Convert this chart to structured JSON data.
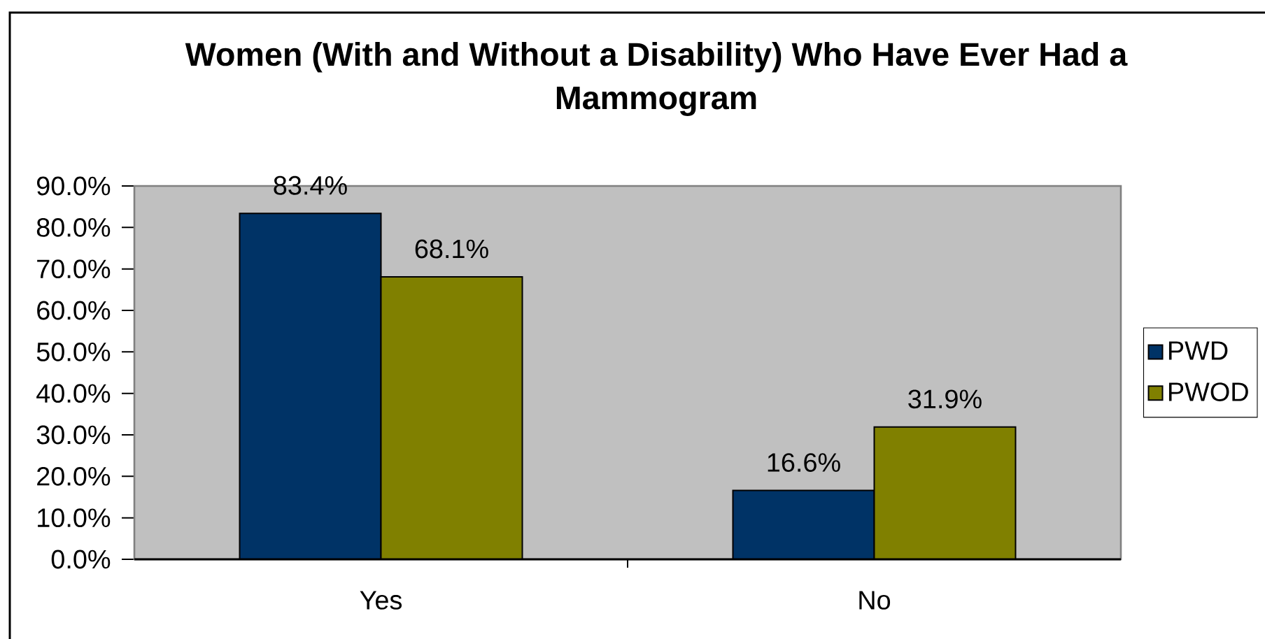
{
  "chart_data": {
    "type": "bar",
    "title": "Women (With and Without a Disability) Who Have Ever Had a Mammogram",
    "categories": [
      "Yes",
      "No"
    ],
    "series": [
      {
        "name": "PWD",
        "color": "#003366",
        "values": [
          83.4,
          16.6
        ],
        "value_labels": [
          "83.4%",
          "16.6%"
        ]
      },
      {
        "name": "PWOD",
        "color": "#808000",
        "values": [
          68.1,
          31.9
        ],
        "value_labels": [
          "68.1%",
          "31.9%"
        ]
      }
    ],
    "ylim": [
      0,
      90
    ],
    "yticks": [
      {
        "value": 0,
        "label": "0.0%"
      },
      {
        "value": 10,
        "label": "10.0%"
      },
      {
        "value": 20,
        "label": "20.0%"
      },
      {
        "value": 30,
        "label": "30.0%"
      },
      {
        "value": 40,
        "label": "40.0%"
      },
      {
        "value": 50,
        "label": "50.0%"
      },
      {
        "value": 60,
        "label": "60.0%"
      },
      {
        "value": 70,
        "label": "70.0%"
      },
      {
        "value": 80,
        "label": "80.0%"
      },
      {
        "value": 90,
        "label": "90.0%"
      }
    ],
    "grid": false,
    "legend": "right"
  }
}
